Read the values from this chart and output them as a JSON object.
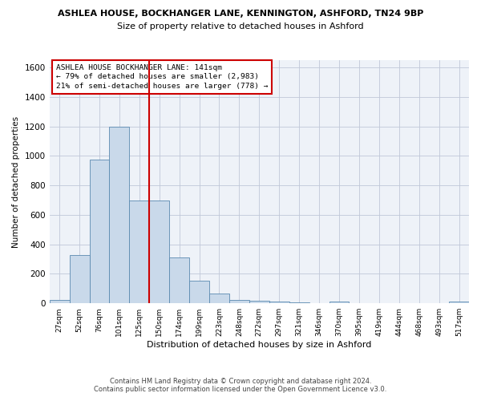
{
  "title_line1": "ASHLEA HOUSE, BOCKHANGER LANE, KENNINGTON, ASHFORD, TN24 9BP",
  "title_line2": "Size of property relative to detached houses in Ashford",
  "xlabel": "Distribution of detached houses by size in Ashford",
  "ylabel": "Number of detached properties",
  "footer_line1": "Contains HM Land Registry data © Crown copyright and database right 2024.",
  "footer_line2": "Contains public sector information licensed under the Open Government Licence v3.0.",
  "annotation_line1": "ASHLEA HOUSE BOCKHANGER LANE: 141sqm",
  "annotation_line2": "← 79% of detached houses are smaller (2,983)",
  "annotation_line3": "21% of semi-detached houses are larger (778) →",
  "categories": [
    "27sqm",
    "52sqm",
    "76sqm",
    "101sqm",
    "125sqm",
    "150sqm",
    "174sqm",
    "199sqm",
    "223sqm",
    "248sqm",
    "272sqm",
    "297sqm",
    "321sqm",
    "346sqm",
    "370sqm",
    "395sqm",
    "419sqm",
    "444sqm",
    "468sqm",
    "493sqm",
    "517sqm"
  ],
  "values": [
    25,
    325,
    975,
    1200,
    700,
    700,
    310,
    155,
    65,
    25,
    15,
    10,
    5,
    0,
    12,
    0,
    0,
    0,
    0,
    0,
    10
  ],
  "bar_color": "#c9d9ea",
  "bar_edge_color": "#5a8ab0",
  "vline_color": "#cc0000",
  "annotation_box_color": "#ffffff",
  "annotation_box_edge_color": "#cc0000",
  "background_color": "#eef2f8",
  "grid_color": "#c0c8d8",
  "ylim": [
    0,
    1650
  ],
  "yticks": [
    0,
    200,
    400,
    600,
    800,
    1000,
    1200,
    1400,
    1600
  ]
}
